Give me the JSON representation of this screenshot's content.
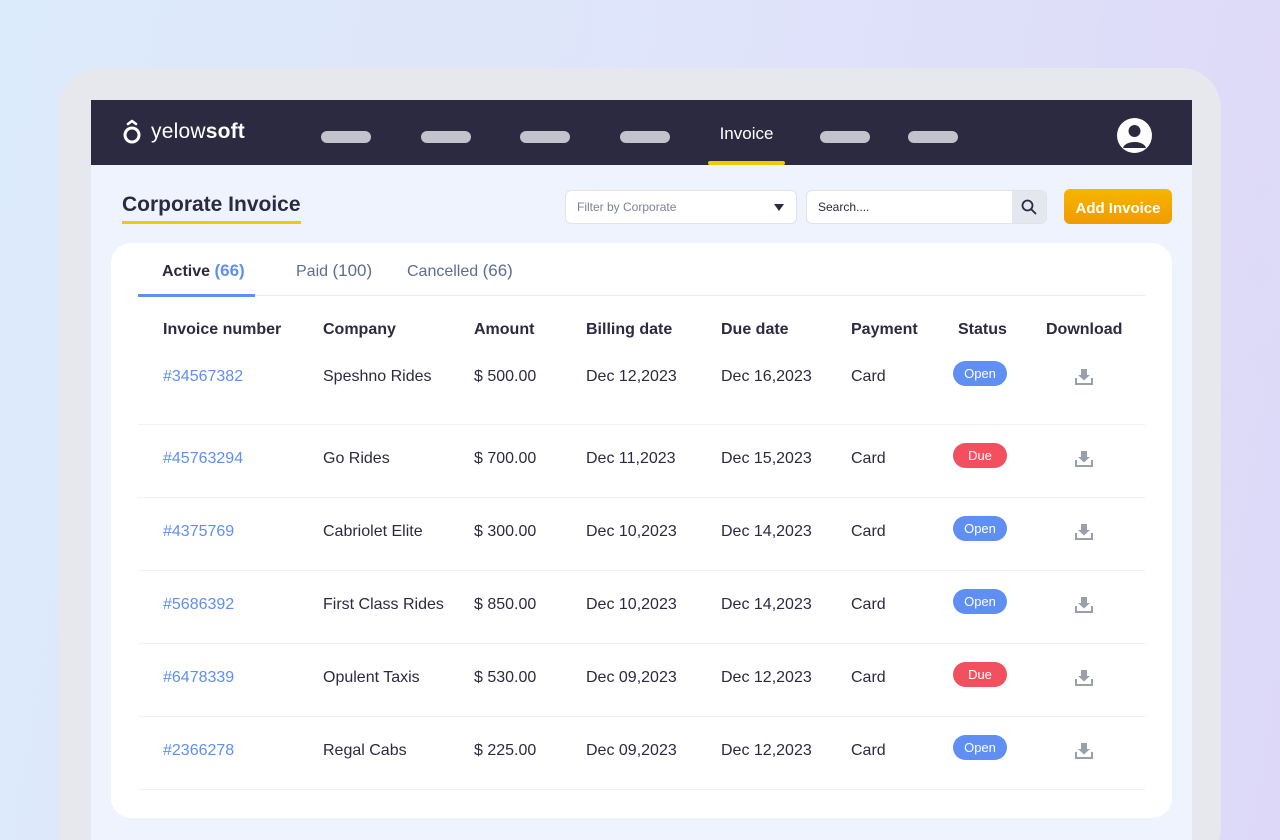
{
  "colors": {
    "accent": "#5f8ff2",
    "nav_bg": "#2c2a41",
    "highlight": "#f5c800",
    "button": "#f7b500",
    "status_open": "#5f8ff2",
    "status_due": "#f2505e"
  },
  "navbar": {
    "logo_prefix": "yelow",
    "logo_bold": "soft",
    "active_item": "Invoice",
    "icon": "user-avatar-icon"
  },
  "page": {
    "title": "Corporate Invoice",
    "filter_placeholder": "Filter by Corporate",
    "search_placeholder": "Search....",
    "add_button": "Add Invoice"
  },
  "tabs": [
    {
      "label": "Active",
      "count": "(66)"
    },
    {
      "label": "Paid",
      "count": "(100)"
    },
    {
      "label": "Cancelled",
      "count": "(66)"
    }
  ],
  "table": {
    "headers": [
      "Invoice number",
      "Company",
      "Amount",
      "Billing date",
      "Due date",
      "Payment",
      "Status",
      "Download"
    ],
    "rows": [
      {
        "invoice": "#34567382",
        "company": "Speshno Rides",
        "amount": "$ 500.00",
        "billing": "Dec 12,2023",
        "due": "Dec 16,2023",
        "payment": "Card",
        "status": "Open"
      },
      {
        "invoice": "#45763294",
        "company": "Go Rides",
        "amount": "$ 700.00",
        "billing": "Dec 11,2023",
        "due": "Dec 15,2023",
        "payment": "Card",
        "status": "Due"
      },
      {
        "invoice": "#4375769",
        "company": "Cabriolet Elite",
        "amount": "$ 300.00",
        "billing": "Dec 10,2023",
        "due": "Dec 14,2023",
        "payment": "Card",
        "status": "Open"
      },
      {
        "invoice": "#5686392",
        "company": "First Class Rides",
        "amount": "$ 850.00",
        "billing": "Dec 10,2023",
        "due": "Dec 14,2023",
        "payment": "Card",
        "status": "Open"
      },
      {
        "invoice": "#6478339",
        "company": "Opulent Taxis",
        "amount": "$ 530.00",
        "billing": "Dec 09,2023",
        "due": "Dec 12,2023",
        "payment": "Card",
        "status": "Due"
      },
      {
        "invoice": "#2366278",
        "company": "Regal Cabs",
        "amount": "$ 225.00",
        "billing": "Dec 09,2023",
        "due": "Dec 12,2023",
        "payment": "Card",
        "status": "Open"
      }
    ]
  }
}
